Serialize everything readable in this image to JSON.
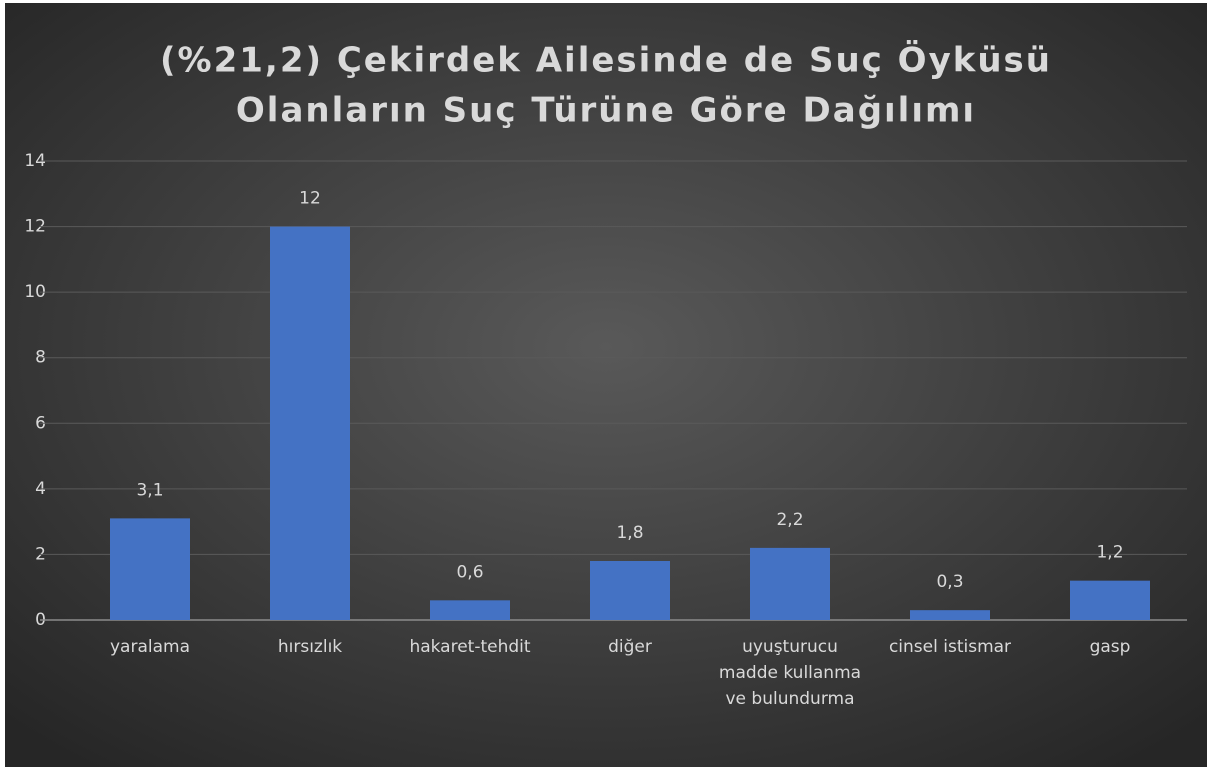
{
  "chart_data": {
    "type": "bar",
    "title": [
      "(%21,2) Çekirdek Ailesinde de Suç Öyküsü",
      "Olanların Suç Türüne Göre Dağılımı"
    ],
    "categories": [
      "yaralama",
      "hırsızlık",
      "hakaret-tehdit",
      "diğer",
      "uyuşturucu madde kullanma ve bulundurma",
      "cinsel istismar",
      "gasp"
    ],
    "values": [
      3.1,
      12,
      0.6,
      1.8,
      2.2,
      0.3,
      1.2
    ],
    "value_labels": [
      "3,1",
      "12",
      "0,6",
      "1,8",
      "2,2",
      "0,3",
      "1,2"
    ],
    "color": "#4472c4",
    "ylim": [
      0,
      14
    ],
    "yticks": [
      0,
      2,
      4,
      6,
      8,
      10,
      12,
      14
    ],
    "grid": true
  }
}
